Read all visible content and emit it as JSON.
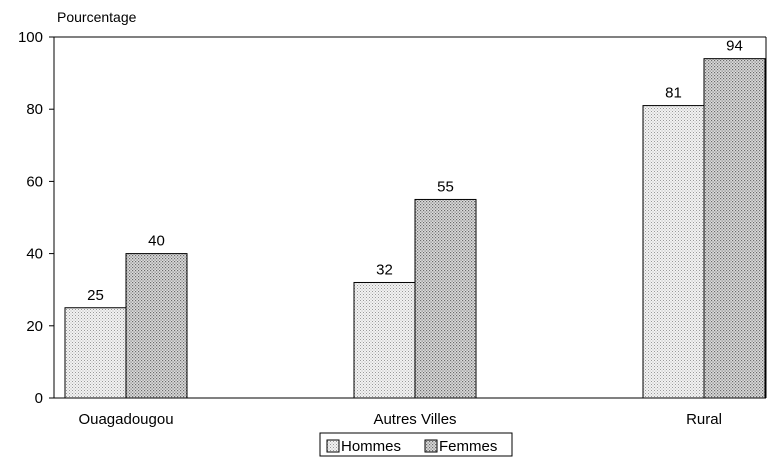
{
  "chart_data": {
    "type": "bar",
    "ylabel": "Pourcentage",
    "xlabel": "",
    "ylim": [
      0,
      100
    ],
    "yticks": [
      0,
      20,
      40,
      60,
      80,
      100
    ],
    "grid": false,
    "legend_position": "bottom-center",
    "categories": [
      "Ouagadougou",
      "Autres Villes",
      "Rural"
    ],
    "series": [
      {
        "name": "Hommes",
        "values": [
          25,
          32,
          81
        ],
        "fill_pattern": "light-dotted",
        "color": "#e2e2e2"
      },
      {
        "name": "Femmes",
        "values": [
          40,
          55,
          94
        ],
        "fill_pattern": "dark-dotted",
        "color": "#c8c8c8"
      }
    ]
  }
}
